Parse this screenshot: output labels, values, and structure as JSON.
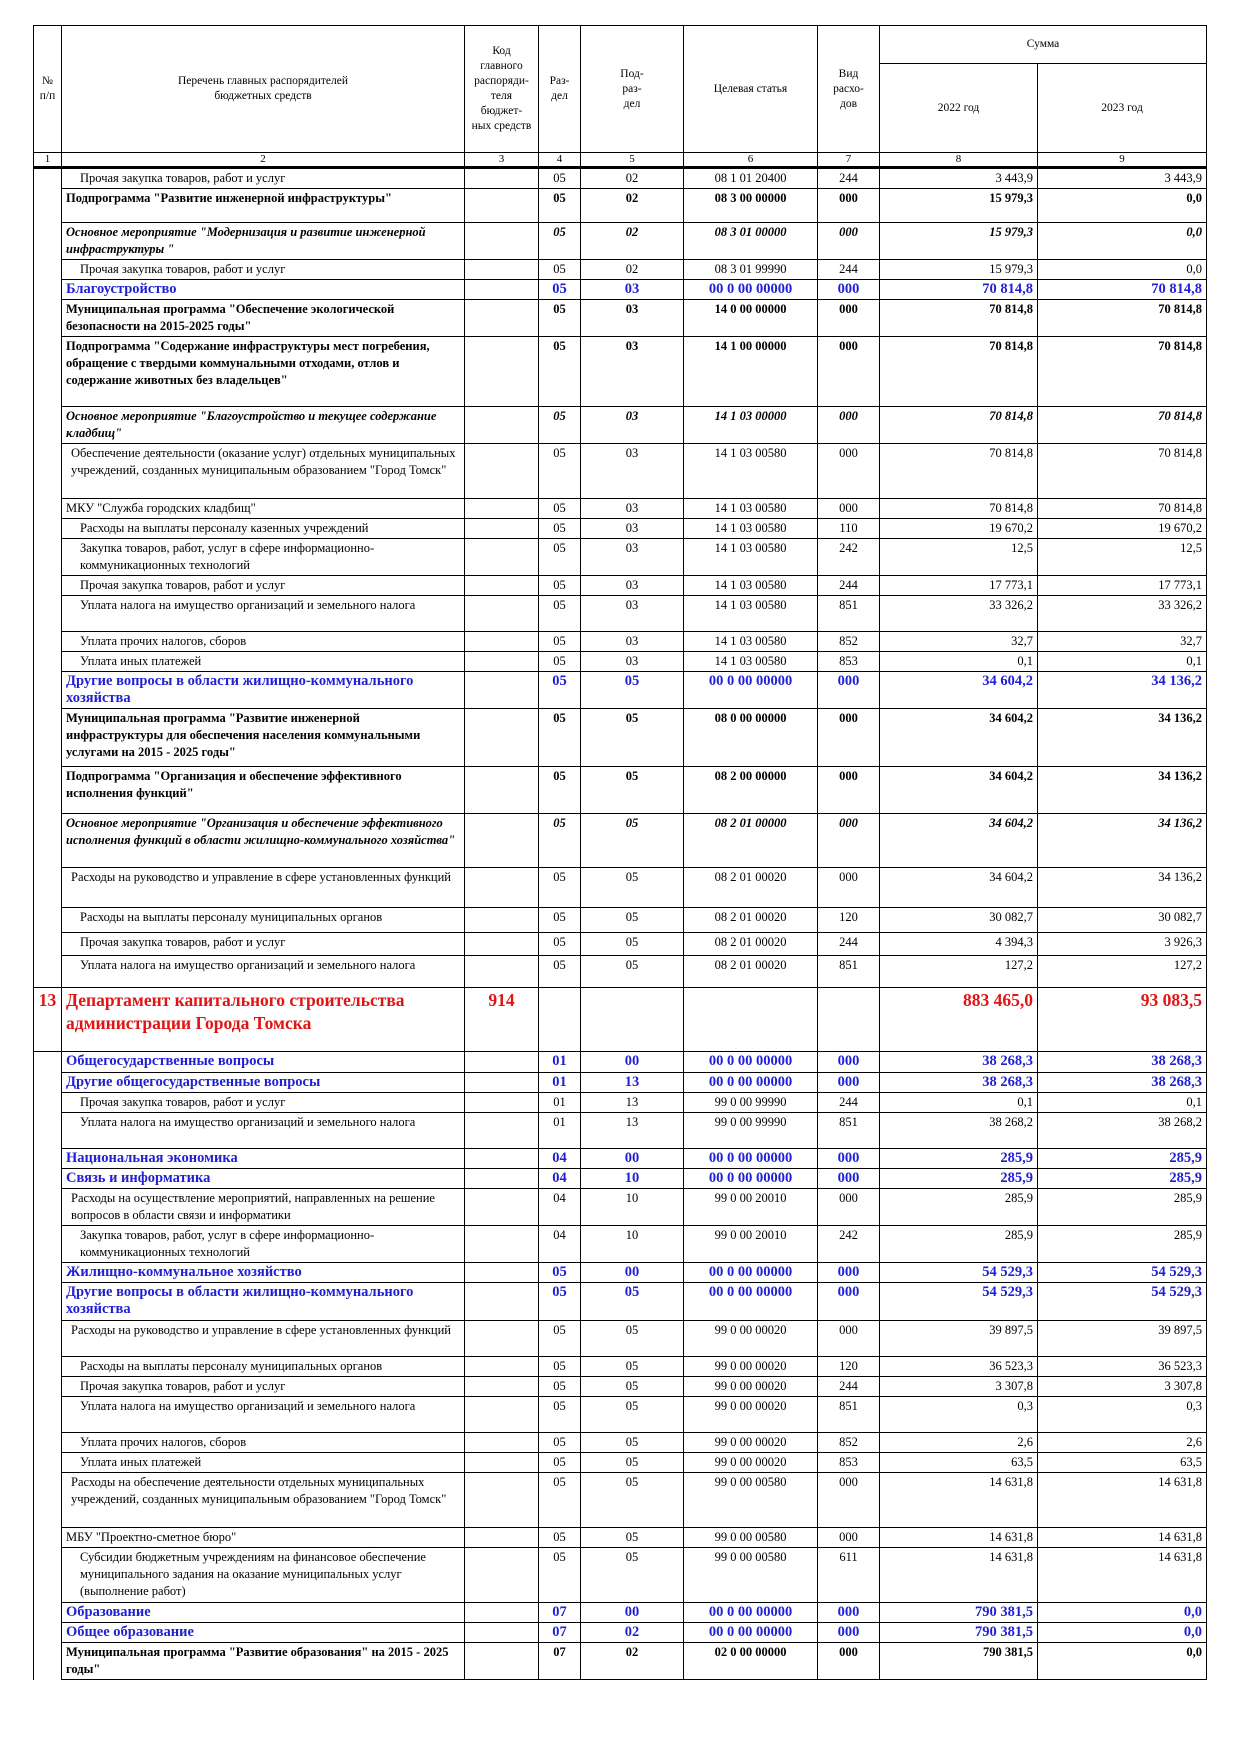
{
  "header": {
    "num": "№\nп/п",
    "name": "Перечень главных распорядителей\nбюджетных средств",
    "code": "Код\nглавного\nраспоряди-\nтеля бюджет-\nных средств",
    "razdel": "Раз-\nдел",
    "podrazdel": "Под-\nраз-\nдел",
    "target": "Целевая статья",
    "vid": "Вид расхо-\nдов",
    "sum": "Сумма",
    "y2022": "2022 год",
    "y2023": "2023 год"
  },
  "colnums": [
    "1",
    "2",
    "3",
    "4",
    "5",
    "6",
    "7",
    "8",
    "9"
  ],
  "rows": [
    {
      "s": "",
      "ind": "ind1",
      "h": 17,
      "n": "",
      "name": "Прочая закупка товаров, работ и услуг",
      "code": "",
      "r": "05",
      "p": "02",
      "t": "08 1 01 20400",
      "v": "244",
      "a": "3 443,9",
      "b": "3 443,9"
    },
    {
      "s": "b",
      "ind": "",
      "h": 34,
      "n": "",
      "name": "Подпрограмма \"Развитие инженерной инфраструктуры\"",
      "code": "",
      "r": "05",
      "p": "02",
      "t": "08 3 00 00000",
      "v": "000",
      "a": "15 979,3",
      "b": "0,0"
    },
    {
      "s": "i",
      "ind": "",
      "h": 36,
      "n": "",
      "name": "Основное мероприятие \"Модернизация и развитие инженерной инфраструктуры \"",
      "code": "",
      "r": "05",
      "p": "02",
      "t": "08 3 01 00000",
      "v": "000",
      "a": "15 979,3",
      "b": "0,0"
    },
    {
      "s": "",
      "ind": "ind1",
      "h": 17,
      "n": "",
      "name": "Прочая закупка товаров, работ и услуг",
      "code": "",
      "r": "05",
      "p": "02",
      "t": "08 3 01 99990",
      "v": "244",
      "a": "15 979,3",
      "b": "0,0"
    },
    {
      "s": "blue",
      "ind": "",
      "h": 18,
      "n": "",
      "name": "Благоустройство",
      "code": "",
      "r": "05",
      "p": "03",
      "t": "00 0 00 00000",
      "v": "000",
      "a": "70 814,8",
      "b": "70 814,8"
    },
    {
      "s": "b",
      "ind": "",
      "h": 36,
      "n": "",
      "name": "Муниципальная программа \"Обеспечение экологической безопасности на 2015-2025 годы\"",
      "code": "",
      "r": "05",
      "p": "03",
      "t": "14 0 00 00000",
      "v": "000",
      "a": "70 814,8",
      "b": "70 814,8"
    },
    {
      "s": "b",
      "ind": "",
      "h": 70,
      "n": "",
      "name": "Подпрограмма \"Содержание инфраструктуры мест погребения, обращение с твердыми коммунальными отходами, отлов и содержание животных без владельцев\"",
      "code": "",
      "r": "05",
      "p": "03",
      "t": "14 1 00 00000",
      "v": "000",
      "a": "70 814,8",
      "b": "70 814,8"
    },
    {
      "s": "i",
      "ind": "",
      "h": 36,
      "n": "",
      "name": "Основное мероприятие \"Благоустройство и текущее содержание кладбищ\"",
      "code": "",
      "r": "05",
      "p": "03",
      "t": "14 1 03 00000",
      "v": "000",
      "a": "70 814,8",
      "b": "70 814,8"
    },
    {
      "s": "",
      "ind": "ind2",
      "h": 55,
      "n": "",
      "name": "Обеспечение деятельности (оказание услуг) отдельных муниципальных учреждений, созданных муниципальным образованием \"Город Томск\"",
      "code": "",
      "r": "05",
      "p": "03",
      "t": "14 1 03 00580",
      "v": "000",
      "a": "70 814,8",
      "b": "70 814,8"
    },
    {
      "s": "",
      "ind": "",
      "h": 17,
      "n": "",
      "name": "МКУ \"Служба городских кладбищ\"",
      "code": "",
      "r": "05",
      "p": "03",
      "t": "14 1 03 00580",
      "v": "000",
      "a": "70 814,8",
      "b": "70 814,8"
    },
    {
      "s": "",
      "ind": "ind1",
      "h": 17,
      "n": "",
      "name": "Расходы на выплаты персоналу казенных учреждений",
      "code": "",
      "r": "05",
      "p": "03",
      "t": "14 1 03 00580",
      "v": "110",
      "a": "19 670,2",
      "b": "19 670,2"
    },
    {
      "s": "",
      "ind": "ind1",
      "h": 36,
      "n": "",
      "name": "Закупка товаров, работ, услуг в сфере информационно-коммуникационных технологий",
      "code": "",
      "r": "05",
      "p": "03",
      "t": "14 1 03 00580",
      "v": "242",
      "a": "12,5",
      "b": "12,5"
    },
    {
      "s": "",
      "ind": "ind1",
      "h": 17,
      "n": "",
      "name": "Прочая закупка товаров, работ и услуг",
      "code": "",
      "r": "05",
      "p": "03",
      "t": "14 1 03 00580",
      "v": "244",
      "a": "17 773,1",
      "b": "17 773,1"
    },
    {
      "s": "",
      "ind": "ind1",
      "h": 36,
      "n": "",
      "name": "Уплата налога на имущество организаций и земельного налога",
      "code": "",
      "r": "05",
      "p": "03",
      "t": "14 1 03 00580",
      "v": "851",
      "a": "33 326,2",
      "b": "33 326,2"
    },
    {
      "s": "",
      "ind": "ind1",
      "h": 17,
      "n": "",
      "name": "Уплата прочих налогов, сборов",
      "code": "",
      "r": "05",
      "p": "03",
      "t": "14 1 03 00580",
      "v": "852",
      "a": "32,7",
      "b": "32,7"
    },
    {
      "s": "",
      "ind": "ind1",
      "h": 17,
      "n": "",
      "name": "Уплата иных платежей",
      "code": "",
      "r": "05",
      "p": "03",
      "t": "14 1 03 00580",
      "v": "853",
      "a": "0,1",
      "b": "0,1"
    },
    {
      "s": "blue",
      "ind": "",
      "h": 36,
      "n": "",
      "name": "Другие вопросы в области жилищно-коммунального хозяйства",
      "code": "",
      "r": "05",
      "p": "05",
      "t": "00 0 00 00000",
      "v": "000",
      "a": "34 604,2",
      "b": "34 136,2"
    },
    {
      "s": "b",
      "ind": "",
      "h": 58,
      "n": "",
      "name": "Муниципальная программа \"Развитие инженерной инфраструктуры для обеспечения населения коммунальными услугами на 2015 - 2025 годы\"",
      "code": "",
      "r": "05",
      "p": "05",
      "t": "08 0 00 00000",
      "v": "000",
      "a": "34 604,2",
      "b": "34 136,2"
    },
    {
      "s": "b",
      "ind": "",
      "h": 47,
      "n": "",
      "name": "Подпрограмма \"Организация и обеспечение эффективного исполнения функций\"",
      "code": "",
      "r": "05",
      "p": "05",
      "t": "08 2 00 00000",
      "v": "000",
      "a": "34 604,2",
      "b": "34 136,2"
    },
    {
      "s": "i",
      "ind": "",
      "h": 54,
      "n": "",
      "name": "Основное мероприятие \"Организация и обеспечение эффективного исполнения функций в области жилищно-коммунального хозяйства\"",
      "code": "",
      "r": "05",
      "p": "05",
      "t": "08 2 01 00000",
      "v": "000",
      "a": "34 604,2",
      "b": "34 136,2"
    },
    {
      "s": "",
      "ind": "ind2",
      "h": 40,
      "n": "",
      "name": "Расходы на руководство и управление в сфере установленных функций",
      "code": "",
      "r": "05",
      "p": "05",
      "t": "08 2 01 00020",
      "v": "000",
      "a": "34 604,2",
      "b": "34 136,2"
    },
    {
      "s": "",
      "ind": "ind1",
      "h": 25,
      "n": "",
      "name": "Расходы на выплаты персоналу муниципальных органов",
      "code": "",
      "r": "05",
      "p": "05",
      "t": "08 2 01 00020",
      "v": "120",
      "a": "30 082,7",
      "b": "30 082,7"
    },
    {
      "s": "",
      "ind": "ind1",
      "h": 23,
      "n": "",
      "name": "Прочая закупка товаров, работ и услуг",
      "code": "",
      "r": "05",
      "p": "05",
      "t": "08 2 01 00020",
      "v": "244",
      "a": "4 394,3",
      "b": "3 926,3"
    },
    {
      "s": "",
      "ind": "ind1",
      "h": 32,
      "n": "",
      "name": "Уплата налога на имущество организаций и земельного налога",
      "code": "",
      "r": "05",
      "p": "05",
      "t": "08 2 01 00020",
      "v": "851",
      "a": "127,2",
      "b": "127,2"
    },
    {
      "s": "red",
      "ind": "",
      "h": 64,
      "n": "13",
      "name": "Департамент капитального строительства администрации Города Томска",
      "code": "914",
      "r": "",
      "p": "",
      "t": "",
      "v": "",
      "a": "883 465,0",
      "b": "93 083,5"
    },
    {
      "s": "blue",
      "ind": "",
      "h": 21,
      "n": "",
      "name": "Общегосударственные вопросы",
      "code": "",
      "r": "01",
      "p": "00",
      "t": "00 0 00 00000",
      "v": "000",
      "a": "38 268,3",
      "b": "38 268,3"
    },
    {
      "s": "blue",
      "ind": "",
      "h": 18,
      "n": "",
      "name": "Другие общегосударственные вопросы",
      "code": "",
      "r": "01",
      "p": "13",
      "t": "00 0 00 00000",
      "v": "000",
      "a": "38 268,3",
      "b": "38 268,3"
    },
    {
      "s": "",
      "ind": "ind1",
      "h": 17,
      "n": "",
      "name": "Прочая закупка товаров, работ и услуг",
      "code": "",
      "r": "01",
      "p": "13",
      "t": "99 0 00 99990",
      "v": "244",
      "a": "0,1",
      "b": "0,1"
    },
    {
      "s": "",
      "ind": "ind1",
      "h": 36,
      "n": "",
      "name": "Уплата налога на имущество организаций и земельного налога",
      "code": "",
      "r": "01",
      "p": "13",
      "t": "99 0 00 99990",
      "v": "851",
      "a": "38 268,2",
      "b": "38 268,2"
    },
    {
      "s": "blue",
      "ind": "",
      "h": 20,
      "n": "",
      "name": "Национальная экономика",
      "code": "",
      "r": "04",
      "p": "00",
      "t": "00 0 00 00000",
      "v": "000",
      "a": "285,9",
      "b": "285,9"
    },
    {
      "s": "blue",
      "ind": "",
      "h": 18,
      "n": "",
      "name": "Связь и информатика",
      "code": "",
      "r": "04",
      "p": "10",
      "t": "00 0 00 00000",
      "v": "000",
      "a": "285,9",
      "b": "285,9"
    },
    {
      "s": "",
      "ind": "ind2",
      "h": 36,
      "n": "",
      "name": "Расходы на осуществление мероприятий, направленных на решение вопросов в области связи и информатики",
      "code": "",
      "r": "04",
      "p": "10",
      "t": "99 0 00 20010",
      "v": "000",
      "a": "285,9",
      "b": "285,9"
    },
    {
      "s": "",
      "ind": "ind1",
      "h": 36,
      "n": "",
      "name": "Закупка товаров, работ, услуг в сфере информационно-коммуникационных технологий",
      "code": "",
      "r": "04",
      "p": "10",
      "t": "99 0 00 20010",
      "v": "242",
      "a": "285,9",
      "b": "285,9"
    },
    {
      "s": "blue",
      "ind": "",
      "h": 20,
      "n": "",
      "name": "Жилищно-коммунальное хозяйство",
      "code": "",
      "r": "05",
      "p": "00",
      "t": "00 0 00 00000",
      "v": "000",
      "a": "54 529,3",
      "b": "54 529,3"
    },
    {
      "s": "blue",
      "ind": "",
      "h": 38,
      "n": "",
      "name": "Другие вопросы в области жилищно-коммунального хозяйства",
      "code": "",
      "r": "05",
      "p": "05",
      "t": "00 0 00 00000",
      "v": "000",
      "a": "54 529,3",
      "b": "54 529,3"
    },
    {
      "s": "",
      "ind": "ind2",
      "h": 36,
      "n": "",
      "name": "Расходы на руководство и управление в сфере установленных функций",
      "code": "",
      "r": "05",
      "p": "05",
      "t": "99 0 00 00020",
      "v": "000",
      "a": "39 897,5",
      "b": "39 897,5"
    },
    {
      "s": "",
      "ind": "ind1",
      "h": 17,
      "n": "",
      "name": "Расходы на выплаты персоналу муниципальных органов",
      "code": "",
      "r": "05",
      "p": "05",
      "t": "99 0 00 00020",
      "v": "120",
      "a": "36 523,3",
      "b": "36 523,3"
    },
    {
      "s": "",
      "ind": "ind1",
      "h": 17,
      "n": "",
      "name": "Прочая закупка товаров, работ и услуг",
      "code": "",
      "r": "05",
      "p": "05",
      "t": "99 0 00 00020",
      "v": "244",
      "a": "3 307,8",
      "b": "3 307,8"
    },
    {
      "s": "",
      "ind": "ind1",
      "h": 36,
      "n": "",
      "name": "Уплата налога на имущество организаций и земельного налога",
      "code": "",
      "r": "05",
      "p": "05",
      "t": "99 0 00 00020",
      "v": "851",
      "a": "0,3",
      "b": "0,3"
    },
    {
      "s": "",
      "ind": "ind1",
      "h": 17,
      "n": "",
      "name": "Уплата прочих налогов, сборов",
      "code": "",
      "r": "05",
      "p": "05",
      "t": "99 0 00 00020",
      "v": "852",
      "a": "2,6",
      "b": "2,6"
    },
    {
      "s": "",
      "ind": "ind1",
      "h": 17,
      "n": "",
      "name": "Уплата иных платежей",
      "code": "",
      "r": "05",
      "p": "05",
      "t": "99 0 00 00020",
      "v": "853",
      "a": "63,5",
      "b": "63,5"
    },
    {
      "s": "",
      "ind": "ind2",
      "h": 55,
      "n": "",
      "name": "Расходы на обеспечение деятельности отдельных муниципальных учреждений, созданных муниципальным образованием \"Город Томск\"",
      "code": "",
      "r": "05",
      "p": "05",
      "t": "99 0 00 00580",
      "v": "000",
      "a": "14 631,8",
      "b": "14 631,8"
    },
    {
      "s": "",
      "ind": "",
      "h": 17,
      "n": "",
      "name": "МБУ \"Проектно-сметное бюро\"",
      "code": "",
      "r": "05",
      "p": "05",
      "t": "99 0 00 00580",
      "v": "000",
      "a": "14 631,8",
      "b": "14 631,8"
    },
    {
      "s": "",
      "ind": "ind1",
      "h": 55,
      "n": "",
      "name": "Субсидии бюджетным учреждениям на финансовое обеспечение муниципального задания на оказание муниципальных услуг (выполнение работ)",
      "code": "",
      "r": "05",
      "p": "05",
      "t": "99 0 00 00580",
      "v": "611",
      "a": "14 631,8",
      "b": "14 631,8"
    },
    {
      "s": "blue",
      "ind": "",
      "h": 20,
      "n": "",
      "name": "Образование",
      "code": "",
      "r": "07",
      "p": "00",
      "t": "00 0 00 00000",
      "v": "000",
      "a": "790 381,5",
      "b": "0,0"
    },
    {
      "s": "blue",
      "ind": "",
      "h": 18,
      "n": "",
      "name": "Общее образование",
      "code": "",
      "r": "07",
      "p": "02",
      "t": "00 0 00 00000",
      "v": "000",
      "a": "790 381,5",
      "b": "0,0"
    },
    {
      "s": "b",
      "ind": "",
      "h": 36,
      "n": "",
      "name": "Муниципальная программа \"Развитие образования\" на 2015 - 2025 годы\"",
      "code": "",
      "r": "07",
      "p": "02",
      "t": "02 0 00 00000",
      "v": "000",
      "a": "790 381,5",
      "b": "0,0"
    }
  ]
}
